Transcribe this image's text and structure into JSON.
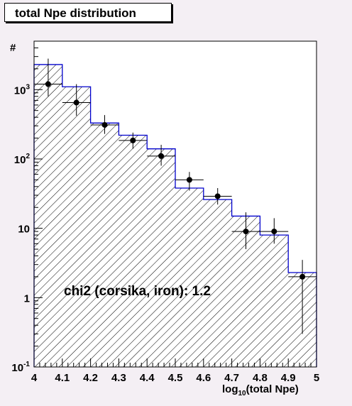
{
  "chart_data": {
    "type": "bar",
    "title": "total Npe distribution",
    "xlabel_main": "log",
    "xlabel_sub": "10",
    "xlabel_rest": "(total Npe)",
    "ylabel": "#",
    "xlim": [
      4,
      5
    ],
    "ylim": [
      0.1,
      5000
    ],
    "yscale": "log",
    "x_ticks": [
      "4",
      "4.1",
      "4.2",
      "4.3",
      "4.4",
      "4.5",
      "4.6",
      "4.7",
      "4.8",
      "4.9",
      "5"
    ],
    "y_ticks": [
      {
        "value": 0.1,
        "base": "10",
        "exp": "-1"
      },
      {
        "value": 1,
        "base": "1",
        "exp": ""
      },
      {
        "value": 10,
        "base": "10",
        "exp": ""
      },
      {
        "value": 100,
        "base": "10",
        "exp": "2"
      },
      {
        "value": 1000,
        "base": "10",
        "exp": "3"
      }
    ],
    "grid": false,
    "bin_edges": [
      4.0,
      4.1,
      4.2,
      4.3,
      4.4,
      4.5,
      4.6,
      4.7,
      4.8,
      4.9,
      5.0
    ],
    "histogram": {
      "values": [
        2300,
        1100,
        330,
        220,
        140,
        38,
        26,
        15,
        8,
        2.3
      ],
      "fill_pattern": "hatched",
      "line_color": "#0000cc"
    },
    "data_points": {
      "x": [
        4.05,
        4.15,
        4.25,
        4.35,
        4.45,
        4.55,
        4.65,
        4.75,
        4.85,
        4.95
      ],
      "y": [
        1200,
        650,
        310,
        185,
        110,
        50,
        29,
        9,
        9,
        2
      ],
      "y_low": [
        800,
        420,
        230,
        140,
        80,
        35,
        22,
        5,
        6,
        0.3
      ],
      "y_high": [
        2800,
        1200,
        430,
        240,
        160,
        65,
        38,
        17,
        14,
        3.5
      ]
    },
    "annotation": "chi2 (corsika, iron): 1.2"
  }
}
